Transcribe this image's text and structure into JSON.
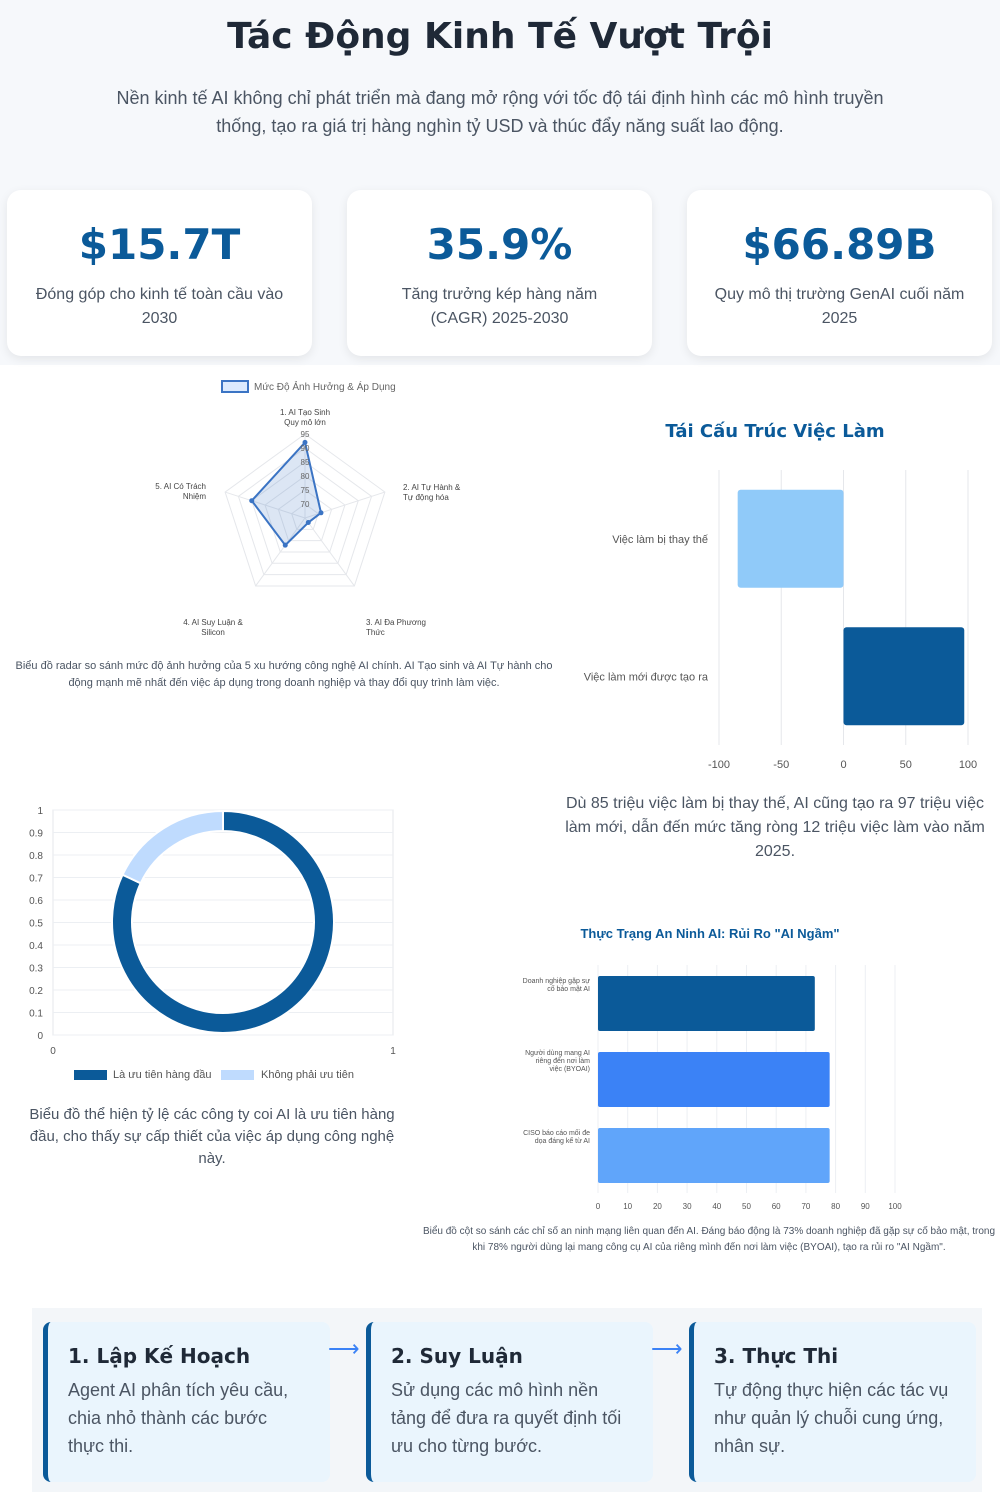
{
  "header": {
    "title": "Tác Động Kinh Tế Vượt Trội",
    "subtitle": "Nền kinh tế AI không chỉ phát triển mà đang mở rộng với tốc độ tái định hình các mô hình truyền thống, tạo ra giá trị hàng nghìn tỷ USD và thúc đẩy năng suất lao động."
  },
  "stats": [
    {
      "value": "$15.7T",
      "label": "Đóng góp cho kinh tế toàn cầu vào 2030"
    },
    {
      "value": "35.9%",
      "label": "Tăng trưởng kép hàng năm (CAGR) 2025-2030"
    },
    {
      "value": "$66.89B",
      "label": "Quy mô thị trường GenAI cuối năm 2025"
    }
  ],
  "colors": {
    "primary": "#0b5a99",
    "light": "#90caf9",
    "pale": "#bfdbfe",
    "blue": "#3b82f6",
    "sky": "#60a5fa"
  },
  "chart_data": [
    {
      "type": "radar",
      "legend": [
        "Mức Độ Ảnh Hưởng & Áp Dụng"
      ],
      "axes": [
        [
          "1. AI Tạo Sinh",
          "Quy mô lớn"
        ],
        [
          "2. AI Tự Hành &",
          "Tự động hóa"
        ],
        [
          "3. AI Đa Phương",
          "Thức"
        ],
        [
          "4. AI Suy Luận &",
          "Silicon"
        ],
        [
          "5. AI Có Trách",
          "Nhiệm"
        ]
      ],
      "series": [
        {
          "name": "Mức Độ Ảnh Hưởng & Áp Dụng",
          "values": [
            92,
            71,
            67,
            77,
            85
          ]
        }
      ],
      "rlim": [
        65,
        95
      ],
      "ticks": [
        70,
        75,
        80,
        85,
        90,
        95
      ],
      "caption": "Biểu đồ radar so sánh mức độ ảnh hưởng của 5 xu hướng công nghệ AI chính. AI Tạo sinh và AI Tự hành cho động mạnh mẽ nhất đến việc áp dụng trong doanh nghiệp và thay đổi quy trình làm việc."
    },
    {
      "type": "bar",
      "orientation": "horizontal",
      "title": "Tái Cấu Trúc Việc Làm",
      "categories": [
        "Việc làm bị thay thế",
        "Việc làm mới được tạo ra"
      ],
      "values": [
        -85,
        97
      ],
      "xlim": [
        -100,
        100
      ],
      "ticks": [
        -100,
        -50,
        0,
        50,
        100
      ],
      "caption": "Dù 85 triệu việc làm bị thay thế, AI cũng tạo ra 97 triệu việc làm mới, dẫn đến mức tăng ròng 12 triệu việc làm vào năm 2025."
    },
    {
      "type": "doughnut",
      "labels": [
        "Là ưu tiên hàng đầu",
        "Không phải ưu tiên"
      ],
      "values": [
        82,
        18
      ],
      "ticks_y": [
        "1",
        "0.9",
        "0.8",
        "0.7",
        "0.6",
        "0.5",
        "0.4",
        "0.3",
        "0.2",
        "0.1",
        "0"
      ],
      "ticks_x": [
        "0",
        "1"
      ],
      "caption": "Biểu đồ thể hiện tỷ lệ các công ty coi AI là ưu tiên hàng đầu, cho thấy sự cấp thiết của việc áp dụng công nghệ này."
    },
    {
      "type": "bar",
      "orientation": "horizontal",
      "title": "Thực Trạng An Ninh AI: Rủi Ro \"AI Ngầm\"",
      "categories": [
        [
          "Doanh nghiệp gặp sự",
          "cố bảo mật AI"
        ],
        [
          "Người dùng mang AI",
          "riêng đến nơi làm",
          "việc (BYOAI)"
        ],
        [
          "CISO báo cáo mối đe",
          "dọa đáng kể từ AI"
        ]
      ],
      "values": [
        73,
        78,
        78
      ],
      "xlim": [
        0,
        100
      ],
      "ticks": [
        0,
        10,
        20,
        30,
        40,
        50,
        60,
        70,
        80,
        90,
        100
      ],
      "caption": "Biểu đồ cột so sánh các chỉ số an ninh mạng liên quan đến AI. Đáng báo động là 73% doanh nghiệp đã gặp sự cố bảo mật, trong khi 78% người dùng lại mang công cụ AI của riêng mình đến nơi làm việc (BYOAI), tạo ra rủi ro \"AI Ngầm\"."
    }
  ],
  "steps": [
    {
      "title": "1. Lập Kế Hoạch",
      "desc": "Agent AI phân tích yêu cầu, chia nhỏ thành các bước thực thi."
    },
    {
      "title": "2. Suy Luận",
      "desc": "Sử dụng các mô hình nền tảng để đưa ra quyết định tối ưu cho từng bước."
    },
    {
      "title": "3. Thực Thi",
      "desc": "Tự động thực hiện các tác vụ như quản lý chuỗi cung ứng, nhân sự."
    }
  ]
}
